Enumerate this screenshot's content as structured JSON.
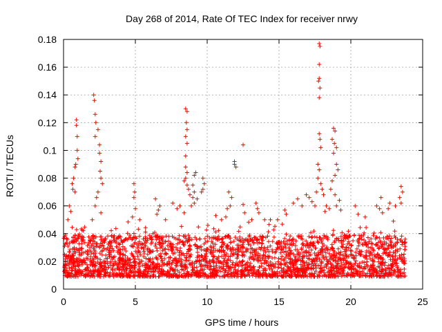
{
  "chart_data": {
    "type": "scatter",
    "title": "Day 268 of 2014, Rate Of TEC Index for receiver nrwy",
    "xlabel": "GPS time / hours",
    "ylabel": "ROTI / TECUs",
    "xlim": [
      0,
      25
    ],
    "ylim": [
      0,
      0.18
    ],
    "x_ticks": [
      0,
      5,
      10,
      15,
      20,
      25
    ],
    "x_tick_labels": [
      "0",
      "5",
      "10",
      "15",
      "20",
      "25"
    ],
    "y_ticks": [
      0,
      0.02,
      0.04,
      0.06,
      0.08,
      0.1,
      0.12,
      0.14,
      0.16,
      0.18
    ],
    "y_tick_labels": [
      "0",
      "0.02",
      "0.04",
      "0.06",
      "0.08",
      "0.1",
      "0.12",
      "0.14",
      "0.16",
      "0.18"
    ],
    "grid": true,
    "marker": "plus",
    "color": "#ff0000",
    "x_range_of_data": [
      0,
      23.8
    ],
    "base_band": [
      0.005,
      0.035
    ],
    "points": [
      [
        0.9,
        0.122
      ],
      [
        0.9,
        0.118
      ],
      [
        0.95,
        0.11
      ],
      [
        0.95,
        0.1
      ],
      [
        1.0,
        0.094
      ],
      [
        0.85,
        0.09
      ],
      [
        0.8,
        0.088
      ],
      [
        0.7,
        0.08
      ],
      [
        0.6,
        0.076
      ],
      [
        0.65,
        0.072
      ],
      [
        0.8,
        0.07
      ],
      [
        0.4,
        0.06
      ],
      [
        0.5,
        0.056
      ],
      [
        0.3,
        0.05
      ],
      [
        2.1,
        0.14
      ],
      [
        2.15,
        0.136
      ],
      [
        2.2,
        0.126
      ],
      [
        2.25,
        0.12
      ],
      [
        2.2,
        0.11
      ],
      [
        2.4,
        0.115
      ],
      [
        2.5,
        0.104
      ],
      [
        2.5,
        0.098
      ],
      [
        2.6,
        0.092
      ],
      [
        2.55,
        0.085
      ],
      [
        2.6,
        0.08
      ],
      [
        2.7,
        0.076
      ],
      [
        2.4,
        0.07
      ],
      [
        2.3,
        0.066
      ],
      [
        2.2,
        0.06
      ],
      [
        2.6,
        0.055
      ],
      [
        2.0,
        0.05
      ],
      [
        4.9,
        0.076
      ],
      [
        4.95,
        0.07
      ],
      [
        4.9,
        0.066
      ],
      [
        5.0,
        0.058
      ],
      [
        4.8,
        0.052
      ],
      [
        5.3,
        0.05
      ],
      [
        6.4,
        0.065
      ],
      [
        6.6,
        0.057
      ],
      [
        6.5,
        0.054
      ],
      [
        6.7,
        0.06
      ],
      [
        7.1,
        0.05
      ],
      [
        7.6,
        0.062
      ],
      [
        7.9,
        0.058
      ],
      [
        8.1,
        0.06
      ],
      [
        8.4,
        0.055
      ],
      [
        8.5,
        0.13
      ],
      [
        8.6,
        0.128
      ],
      [
        8.55,
        0.12
      ],
      [
        8.6,
        0.115
      ],
      [
        8.5,
        0.11
      ],
      [
        8.6,
        0.105
      ],
      [
        8.5,
        0.096
      ],
      [
        8.5,
        0.088
      ],
      [
        8.6,
        0.084
      ],
      [
        8.5,
        0.08
      ],
      [
        8.4,
        0.078
      ],
      [
        8.6,
        0.075
      ],
      [
        8.7,
        0.072
      ],
      [
        8.8,
        0.068
      ],
      [
        9.0,
        0.066
      ],
      [
        9.1,
        0.062
      ],
      [
        8.9,
        0.06
      ],
      [
        9.2,
        0.084
      ],
      [
        9.1,
        0.082
      ],
      [
        9.0,
        0.075
      ],
      [
        9.1,
        0.07
      ],
      [
        9.3,
        0.065
      ],
      [
        9.7,
        0.08
      ],
      [
        9.8,
        0.076
      ],
      [
        9.7,
        0.072
      ],
      [
        9.6,
        0.07
      ],
      [
        10.6,
        0.053
      ],
      [
        11.0,
        0.05
      ],
      [
        11.3,
        0.052
      ],
      [
        11.5,
        0.07
      ],
      [
        11.7,
        0.066
      ],
      [
        11.6,
        0.06
      ],
      [
        11.4,
        0.058
      ],
      [
        11.9,
        0.092
      ],
      [
        11.9,
        0.09
      ],
      [
        12.0,
        0.088
      ],
      [
        12.5,
        0.104
      ],
      [
        12.5,
        0.061
      ],
      [
        12.6,
        0.055
      ],
      [
        13.1,
        0.05
      ],
      [
        13.4,
        0.062
      ],
      [
        13.5,
        0.058
      ],
      [
        13.6,
        0.055
      ],
      [
        14.0,
        0.05
      ],
      [
        14.4,
        0.05
      ],
      [
        14.9,
        0.05
      ],
      [
        15.4,
        0.057
      ],
      [
        15.5,
        0.054
      ],
      [
        16.0,
        0.062
      ],
      [
        16.3,
        0.065
      ],
      [
        16.6,
        0.06
      ],
      [
        16.9,
        0.068
      ],
      [
        17.1,
        0.066
      ],
      [
        17.3,
        0.063
      ],
      [
        17.5,
        0.06
      ],
      [
        17.6,
        0.07
      ],
      [
        17.8,
        0.177
      ],
      [
        17.85,
        0.175
      ],
      [
        17.8,
        0.162
      ],
      [
        17.8,
        0.152
      ],
      [
        17.75,
        0.15
      ],
      [
        17.85,
        0.145
      ],
      [
        17.8,
        0.138
      ],
      [
        17.8,
        0.112
      ],
      [
        17.85,
        0.108
      ],
      [
        17.9,
        0.102
      ],
      [
        17.7,
        0.09
      ],
      [
        17.8,
        0.086
      ],
      [
        17.7,
        0.08
      ],
      [
        17.9,
        0.076
      ],
      [
        18.0,
        0.072
      ],
      [
        18.1,
        0.068
      ],
      [
        18.3,
        0.06
      ],
      [
        18.2,
        0.056
      ],
      [
        18.5,
        0.058
      ],
      [
        18.8,
        0.116
      ],
      [
        18.9,
        0.114
      ],
      [
        18.7,
        0.108
      ],
      [
        18.85,
        0.105
      ],
      [
        19.0,
        0.102
      ],
      [
        18.8,
        0.098
      ],
      [
        19.0,
        0.09
      ],
      [
        19.1,
        0.086
      ],
      [
        18.9,
        0.082
      ],
      [
        18.7,
        0.078
      ],
      [
        18.6,
        0.072
      ],
      [
        18.9,
        0.068
      ],
      [
        19.2,
        0.064
      ],
      [
        19.0,
        0.06
      ],
      [
        19.3,
        0.057
      ],
      [
        20.3,
        0.06
      ],
      [
        20.5,
        0.054
      ],
      [
        21.0,
        0.052
      ],
      [
        21.8,
        0.06
      ],
      [
        22.0,
        0.058
      ],
      [
        22.1,
        0.066
      ],
      [
        22.2,
        0.055
      ],
      [
        22.6,
        0.058
      ],
      [
        22.7,
        0.062
      ],
      [
        23.1,
        0.06
      ],
      [
        23.4,
        0.066
      ],
      [
        23.5,
        0.074
      ],
      [
        23.6,
        0.07
      ],
      [
        23.5,
        0.062
      ]
    ]
  }
}
